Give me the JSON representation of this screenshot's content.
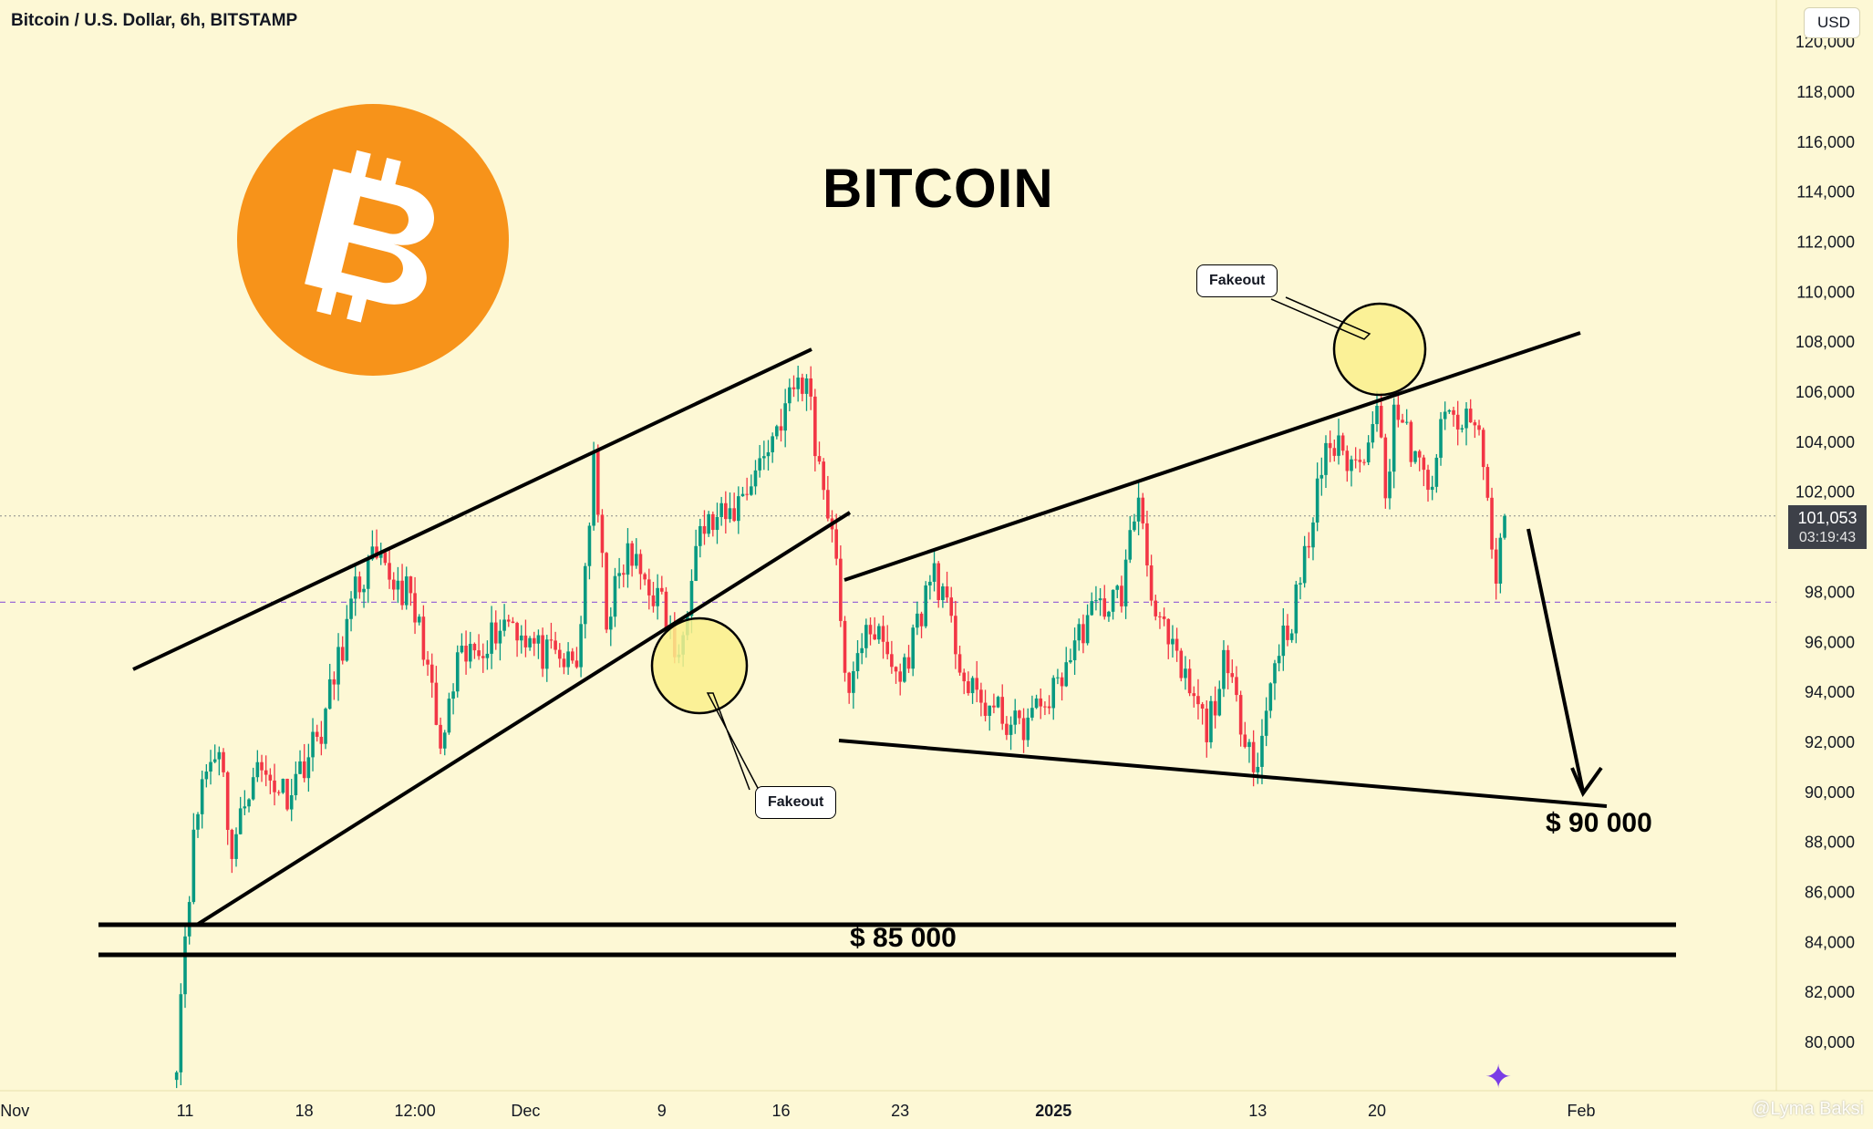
{
  "header": {
    "symbol_title": "Bitcoin / U.S. Dollar, 6h, BITSTAMP",
    "currency": "USD"
  },
  "annotations": {
    "title": "BITCOIN",
    "label_85k": "$ 85 000",
    "label_90k": "$ 90 000",
    "fakeout_1": "Fakeout",
    "fakeout_2": "Fakeout"
  },
  "price_tag": {
    "price": "101,053",
    "countdown": "03:19:43"
  },
  "watermark": "@Lyma Baksi",
  "icons": {
    "logo": "bitcoin-logo-icon",
    "widget": "sparkle-assistant-icon"
  },
  "colors": {
    "background": "#fdf8d5",
    "up_candle": "#089981",
    "down_candle": "#f23645",
    "logo": "#f7931a",
    "highlight": "#faf08c",
    "last_price_tag": "#3d4048"
  },
  "chart_data": {
    "type": "candlestick",
    "title": "BITCOIN",
    "interval": "6h",
    "ylim": [
      78500,
      121000
    ],
    "y_ticks": [
      80000,
      82000,
      84000,
      86000,
      88000,
      90000,
      92000,
      94000,
      96000,
      98000,
      100000,
      102000,
      104000,
      106000,
      108000,
      110000,
      112000,
      114000,
      116000,
      118000,
      120000
    ],
    "y_tick_labels": [
      "80,000",
      "82,000",
      "84,000",
      "86,000",
      "88,000",
      "90,000",
      "92,000",
      "94,000",
      "96,000",
      "98,000",
      "",
      "102,000",
      "104,000",
      "106,000",
      "108,000",
      "110,000",
      "112,000",
      "114,000",
      "116,000",
      "118,000",
      "120,000"
    ],
    "x_ticks": [
      {
        "label": "Nov",
        "date": "2024-11-01"
      },
      {
        "label": "11",
        "date": "2024-11-11"
      },
      {
        "label": "18",
        "date": "2024-11-18"
      },
      {
        "label": "12:00",
        "date": "2024-11-24T12:00"
      },
      {
        "label": "Dec",
        "date": "2024-12-01"
      },
      {
        "label": "9",
        "date": "2024-12-09"
      },
      {
        "label": "16",
        "date": "2024-12-16"
      },
      {
        "label": "23",
        "date": "2024-12-23"
      },
      {
        "label": "2025",
        "date": "2025-01-01"
      },
      {
        "label": "13",
        "date": "2025-01-13"
      },
      {
        "label": "20",
        "date": "2025-01-20"
      },
      {
        "label": "Feb",
        "date": "2025-02-01"
      }
    ],
    "keypoints": [
      {
        "date": "2024-11-10T12:00",
        "close": 79500
      },
      {
        "date": "2024-11-11",
        "close": 84500
      },
      {
        "date": "2024-11-11T12:00",
        "close": 88000
      },
      {
        "date": "2024-11-12",
        "close": 90500
      },
      {
        "date": "2024-11-13",
        "close": 92000
      },
      {
        "date": "2024-11-13T18:00",
        "close": 87500
      },
      {
        "date": "2024-11-15",
        "close": 91000
      },
      {
        "date": "2024-11-17",
        "close": 90000
      },
      {
        "date": "2024-11-19",
        "close": 92500
      },
      {
        "date": "2024-11-21",
        "close": 98000
      },
      {
        "date": "2024-11-22",
        "close": 99200
      },
      {
        "date": "2024-11-24",
        "close": 98000
      },
      {
        "date": "2024-11-25",
        "close": 96000
      },
      {
        "date": "2024-11-26",
        "close": 91500
      },
      {
        "date": "2024-11-27",
        "close": 95000
      },
      {
        "date": "2024-11-30",
        "close": 97000
      },
      {
        "date": "2024-12-02",
        "close": 95500
      },
      {
        "date": "2024-12-04",
        "close": 95000
      },
      {
        "date": "2024-12-05",
        "close": 103000
      },
      {
        "date": "2024-12-05T18:00",
        "close": 97000
      },
      {
        "date": "2024-12-07",
        "close": 99500
      },
      {
        "date": "2024-12-09",
        "close": 97500
      },
      {
        "date": "2024-12-10",
        "close": 95000
      },
      {
        "date": "2024-12-11",
        "close": 100500
      },
      {
        "date": "2024-12-13",
        "close": 101000
      },
      {
        "date": "2024-12-15",
        "close": 103500
      },
      {
        "date": "2024-12-17",
        "close": 106500
      },
      {
        "date": "2024-12-17T18:00",
        "close": 106000
      },
      {
        "date": "2024-12-18",
        "close": 104000
      },
      {
        "date": "2024-12-19",
        "close": 100500
      },
      {
        "date": "2024-12-20",
        "close": 93500
      },
      {
        "date": "2024-12-21",
        "close": 97000
      },
      {
        "date": "2024-12-23",
        "close": 94500
      },
      {
        "date": "2024-12-25",
        "close": 99000
      },
      {
        "date": "2024-12-27",
        "close": 94000
      },
      {
        "date": "2024-12-30",
        "close": 92500
      },
      {
        "date": "2025-01-01",
        "close": 94000
      },
      {
        "date": "2025-01-03",
        "close": 97000
      },
      {
        "date": "2025-01-05",
        "close": 98000
      },
      {
        "date": "2025-01-06",
        "close": 102000
      },
      {
        "date": "2025-01-07",
        "close": 97000
      },
      {
        "date": "2025-01-09",
        "close": 94000
      },
      {
        "date": "2025-01-10",
        "close": 92500
      },
      {
        "date": "2025-01-11",
        "close": 95000
      },
      {
        "date": "2025-01-13",
        "close": 91000
      },
      {
        "date": "2025-01-14",
        "close": 95500
      },
      {
        "date": "2025-01-15",
        "close": 97000
      },
      {
        "date": "2025-01-16",
        "close": 100000
      },
      {
        "date": "2025-01-17",
        "close": 104000
      },
      {
        "date": "2025-01-19",
        "close": 103000
      },
      {
        "date": "2025-01-20",
        "close": 106000
      },
      {
        "date": "2025-01-20T12:00",
        "close": 101500
      },
      {
        "date": "2025-01-21",
        "close": 105500
      },
      {
        "date": "2025-01-23",
        "close": 102000
      },
      {
        "date": "2025-01-24",
        "close": 105000
      },
      {
        "date": "2025-01-26",
        "close": 104500
      },
      {
        "date": "2025-01-27",
        "close": 98500
      },
      {
        "date": "2025-01-27T12:00",
        "close": 101053
      }
    ],
    "last_price": 101053,
    "horizontal_levels": [
      85000,
      83700
    ],
    "target_price": 90000
  }
}
